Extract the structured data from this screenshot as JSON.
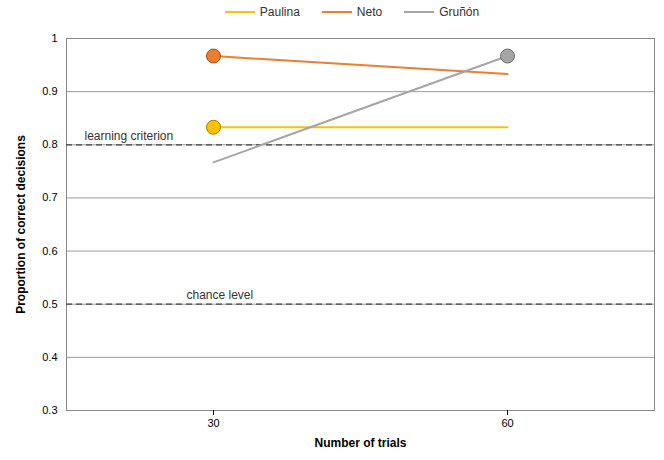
{
  "chart_data": {
    "type": "line",
    "x_label": "Number of trials",
    "y_label": "Proportion of correct decisions",
    "categories": [
      30,
      60
    ],
    "ylim": [
      0.3,
      1
    ],
    "yticks": [
      0.3,
      0.4,
      0.5,
      0.6,
      0.7,
      0.8,
      0.9,
      1
    ],
    "grid": true,
    "legend": "top",
    "series": [
      {
        "name": "Paulina",
        "color": "#ffc000",
        "type": "line",
        "values": [
          0.833,
          0.833
        ]
      },
      {
        "name": "Neto",
        "color": "#ed7d31",
        "type": "line",
        "values": [
          0.967,
          0.933
        ]
      },
      {
        "name": "Gruñón",
        "color": "#a5a5a5",
        "type": "line",
        "values": [
          0.767,
          0.967
        ]
      },
      {
        "name": "Paulina",
        "color": "#ffc000",
        "type": "scatter",
        "marker": "circle",
        "values": [
          0.833,
          null
        ]
      },
      {
        "name": "Neto",
        "color": "#ed7d31",
        "type": "scatter",
        "marker": "circle",
        "values": [
          0.967,
          null
        ]
      },
      {
        "name": "Gruñón",
        "color": "#a5a5a5",
        "type": "scatter",
        "marker": "circle",
        "values": [
          null,
          0.967
        ]
      }
    ],
    "annotations": [
      {
        "text": "learning criterion",
        "y": 0.8,
        "line_style": "dashed"
      },
      {
        "text": "chance level",
        "y": 0.5,
        "line_style": "dashed"
      }
    ]
  }
}
